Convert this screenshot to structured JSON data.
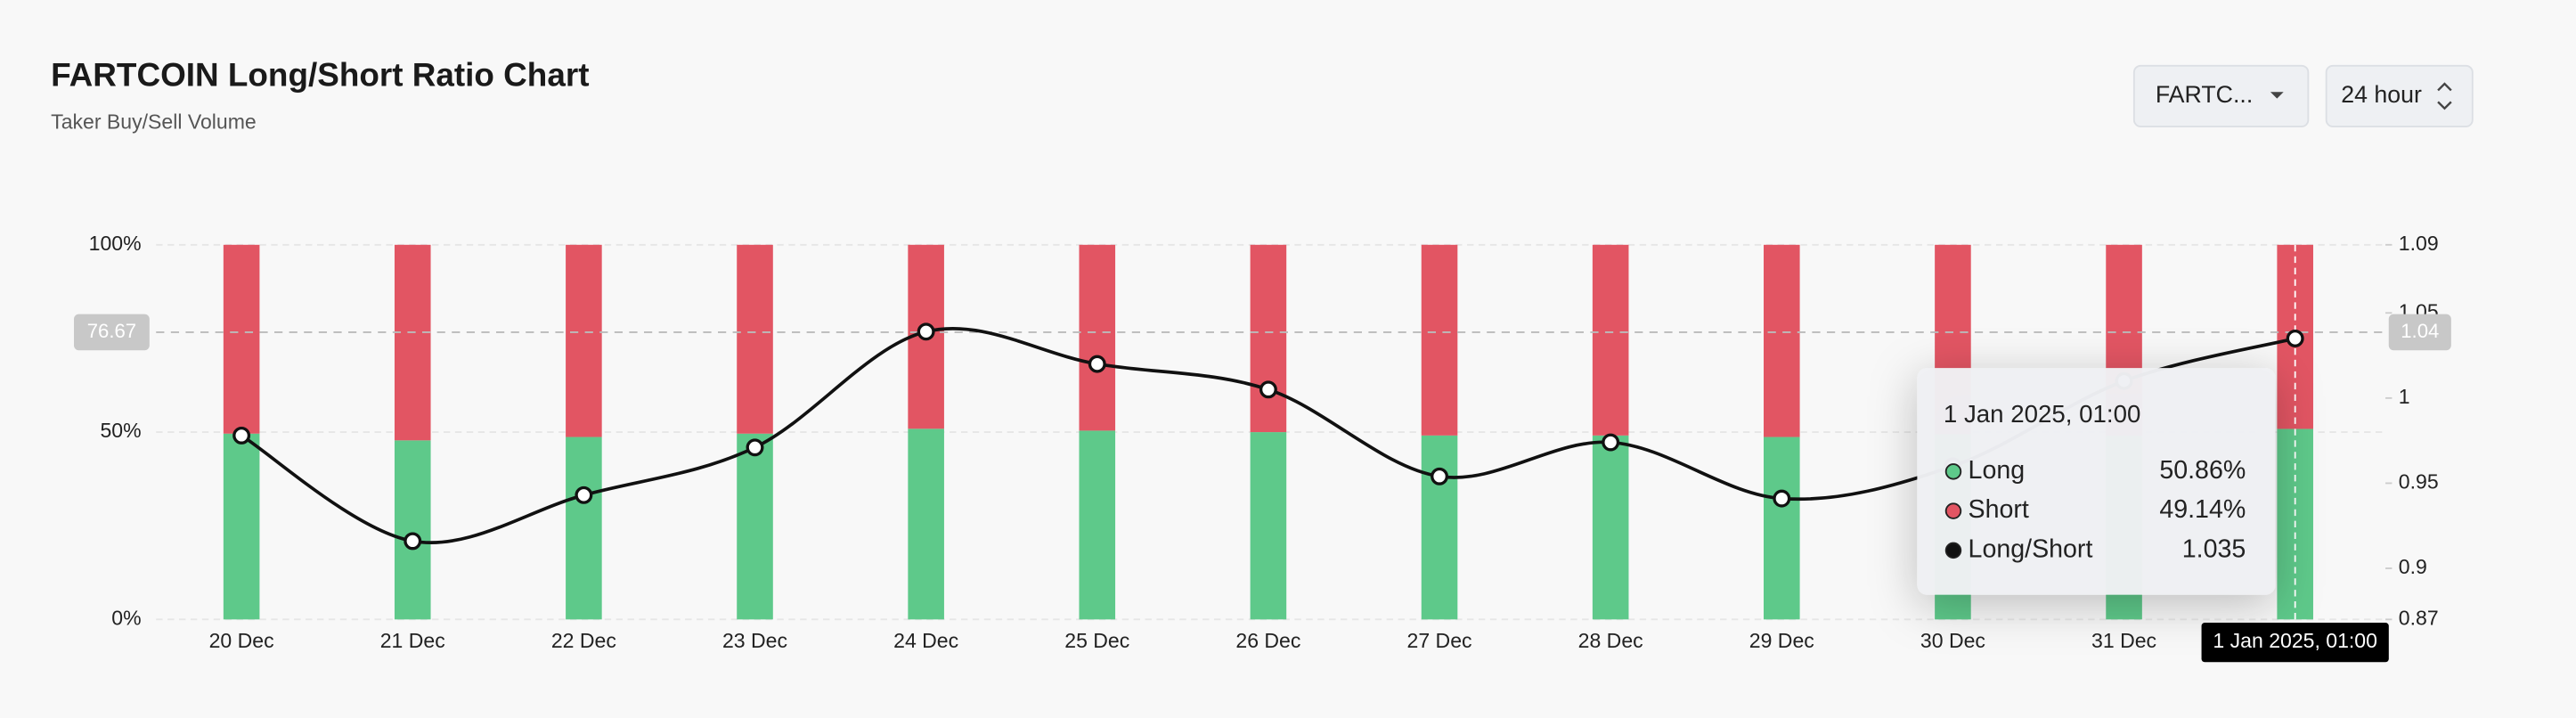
{
  "header": {
    "title": "FARTCOIN Long/Short Ratio Chart",
    "subtitle": "Taker Buy/Sell Volume"
  },
  "controls": {
    "symbol": "FARTC...",
    "period": "24 hour"
  },
  "chart_data": {
    "type": "bar",
    "stacked": true,
    "categories": [
      "20 Dec",
      "21 Dec",
      "22 Dec",
      "23 Dec",
      "24 Dec",
      "25 Dec",
      "26 Dec",
      "27 Dec",
      "28 Dec",
      "29 Dec",
      "30 Dec",
      "31 Dec",
      "1 Jan 2025, 01:00"
    ],
    "series": [
      {
        "name": "Long",
        "color": "#5ec98a",
        "values": [
          49.6,
          47.8,
          48.7,
          49.6,
          50.9,
          50.4,
          50.0,
          49.1,
          49.1,
          48.7,
          49.5,
          49.0,
          50.86
        ]
      },
      {
        "name": "Short",
        "color": "#e25563",
        "values": [
          50.4,
          52.2,
          51.3,
          50.4,
          49.1,
          49.6,
          50.0,
          50.9,
          50.9,
          51.3,
          50.5,
          51.0,
          49.14
        ]
      },
      {
        "name": "Long/Short",
        "type": "line",
        "axis": "y2",
        "color": "#111111",
        "values": [
          0.978,
          0.916,
          0.943,
          0.971,
          1.039,
          1.02,
          1.005,
          0.954,
          0.974,
          0.941,
          0.96,
          1.01,
          1.035
        ]
      }
    ],
    "ylim": [
      0,
      100
    ],
    "yticks": [
      {
        "value": 0,
        "label": "0%"
      },
      {
        "value": 50,
        "label": "50%"
      },
      {
        "value": 100,
        "label": "100%"
      }
    ],
    "y2lim": [
      0.87,
      1.09
    ],
    "y2ticks": [
      0.87,
      0.9,
      0.95,
      1.0,
      1.05,
      1.09
    ],
    "grid": true
  },
  "crosshair": {
    "index": 12,
    "y": 76.67,
    "y2": 1.04
  },
  "tooltip": {
    "values": [
      "50.86%",
      "49.14%",
      "1.035"
    ]
  }
}
